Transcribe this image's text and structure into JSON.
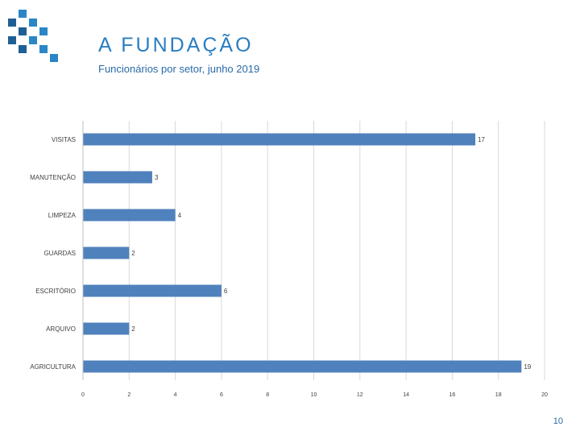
{
  "header": {
    "title": "A FUNDAÇÃO",
    "subtitle": "Funcionários por setor, junho 2019"
  },
  "colors": {
    "accent": "#2a7ec0",
    "bar": "#4f81bd",
    "logo_light": "#2a86c7",
    "logo_dark": "#1f5f95"
  },
  "logo": {
    "icon": "fundacao-logo-icon"
  },
  "chart_data": {
    "type": "bar",
    "orientation": "horizontal",
    "categories": [
      "VISITAS",
      "MANUTENÇÃO",
      "LIMPEZA",
      "GUARDAS",
      "ESCRITÓRIO",
      "ARQUIVO",
      "AGRICULTURA"
    ],
    "values": [
      17,
      3,
      4,
      2,
      6,
      2,
      19
    ],
    "xlim": [
      0,
      20
    ],
    "xticks": [
      0,
      2,
      4,
      6,
      8,
      10,
      12,
      14,
      16,
      18,
      20
    ],
    "xlabel": "",
    "ylabel": "",
    "grid": true,
    "legend": "none",
    "data_labels": true
  },
  "footer": {
    "page_number": "10"
  }
}
